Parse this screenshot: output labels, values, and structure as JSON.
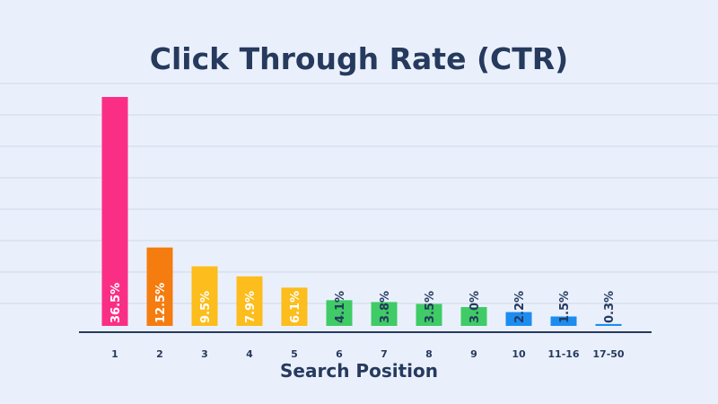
{
  "chart_data": {
    "type": "bar",
    "title": "Click Through Rate (CTR)",
    "xlabel": "Search Position",
    "ylabel": "",
    "ylim": [
      0,
      38
    ],
    "grid": true,
    "categories": [
      "1",
      "2",
      "3",
      "4",
      "5",
      "6",
      "7",
      "8",
      "9",
      "10",
      "11-16",
      "17-50"
    ],
    "values": [
      36.5,
      12.5,
      9.5,
      7.9,
      6.1,
      4.1,
      3.8,
      3.5,
      3.0,
      2.2,
      1.5,
      0.3
    ],
    "data_labels": [
      "36.5%",
      "12.5%",
      "9.5%",
      "7.9%",
      "6.1%",
      "4.1%",
      "3.8%",
      "3.5%",
      "3.0%",
      "2.2%",
      "1.5%",
      "0.3%"
    ],
    "bar_colors": [
      "#fb2e86",
      "#f57c0f",
      "#fcbd1d",
      "#fcbd1d",
      "#fcbd1d",
      "#3fcb65",
      "#3fcb65",
      "#3fcb65",
      "#3fcb65",
      "#1c8cf0",
      "#1c8cf0",
      "#1c8cf0"
    ],
    "colors": {
      "background": "#eaf0fb",
      "text": "#263a5e",
      "grid": "#cdd7ea",
      "axis": "#263a5e",
      "label_on_bar": "#ffffff"
    }
  }
}
